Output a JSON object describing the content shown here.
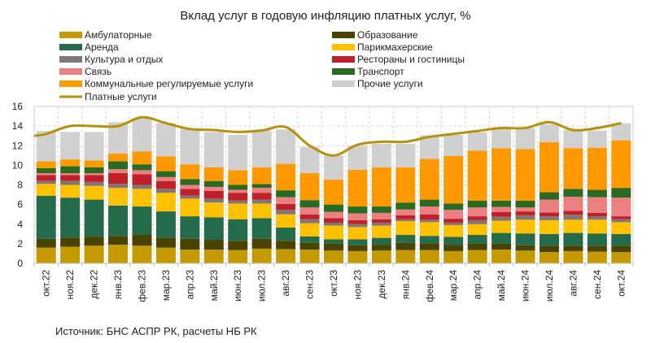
{
  "chart_data": {
    "type": "bar",
    "stacked": true,
    "title": "Вклад услуг в годовую инфляцию платных услуг, %",
    "xlabel": "",
    "ylabel": "",
    "ylim": [
      0,
      16
    ],
    "yticks": [
      0,
      2,
      4,
      6,
      8,
      10,
      12,
      14,
      16
    ],
    "grid": true,
    "legend_position": "top",
    "categories": [
      "окт.22",
      "ноя.22",
      "дек.22",
      "янв.23",
      "фев.23",
      "мар.23",
      "апр.23",
      "май.23",
      "июн.23",
      "июл.23",
      "авг.23",
      "сен.23",
      "окт.23",
      "ноя.23",
      "дек.23",
      "янв.24",
      "фев.24",
      "мар.24",
      "апр.24",
      "май.24",
      "июн.24",
      "июл.24",
      "авг.24",
      "сен.24",
      "окт.24"
    ],
    "series": [
      {
        "name": "Амбулаторные",
        "color": "#c49a00",
        "values": [
          1.6,
          1.7,
          1.8,
          1.9,
          1.8,
          1.6,
          1.4,
          1.4,
          1.35,
          1.5,
          1.45,
          1.4,
          1.3,
          1.25,
          1.3,
          1.35,
          1.35,
          1.25,
          1.35,
          1.4,
          1.3,
          1.15,
          1.25,
          1.2,
          1.15
        ]
      },
      {
        "name": "Образование",
        "color": "#4a4300",
        "values": [
          0.9,
          0.9,
          0.9,
          0.9,
          1.1,
          1.0,
          1.1,
          1.0,
          0.95,
          1.0,
          0.85,
          0.7,
          0.7,
          0.6,
          0.6,
          0.75,
          0.7,
          0.65,
          0.65,
          0.6,
          0.55,
          0.65,
          0.55,
          0.6,
          0.65
        ]
      },
      {
        "name": "Аренда",
        "color": "#236b4a",
        "values": [
          4.4,
          4.1,
          3.8,
          3.1,
          2.9,
          2.7,
          2.3,
          2.3,
          2.2,
          2.1,
          1.35,
          0.65,
          0.45,
          0.6,
          0.7,
          0.8,
          0.75,
          0.8,
          0.9,
          1.1,
          1.2,
          1.2,
          1.3,
          1.25,
          1.2
        ]
      },
      {
        "name": "Парикмахерские",
        "color": "#ffc000",
        "values": [
          1.2,
          1.3,
          1.4,
          1.8,
          1.8,
          1.9,
          1.8,
          1.5,
          1.6,
          1.5,
          1.35,
          1.35,
          1.4,
          1.25,
          1.25,
          1.4,
          1.4,
          1.2,
          1.1,
          1.25,
          1.4,
          1.4,
          1.35,
          1.4,
          1.2
        ]
      },
      {
        "name": "Культура и отдых",
        "color": "#7f7777",
        "values": [
          0.3,
          0.4,
          0.4,
          0.4,
          0.4,
          0.4,
          0.3,
          0.4,
          0.3,
          0.4,
          0.45,
          0.4,
          0.3,
          0.3,
          0.3,
          0.2,
          0.25,
          0.25,
          0.4,
          0.4,
          0.45,
          0.4,
          0.5,
          0.35,
          0.3
        ]
      },
      {
        "name": "Рестораны и гостиницы",
        "color": "#c0202a",
        "values": [
          0.6,
          0.6,
          0.7,
          1.1,
          1.1,
          0.8,
          0.7,
          0.8,
          0.8,
          0.7,
          0.6,
          0.5,
          0.45,
          0.4,
          0.35,
          0.4,
          0.55,
          0.4,
          0.4,
          0.5,
          0.4,
          0.4,
          0.4,
          0.35,
          0.3
        ]
      },
      {
        "name": "Связь",
        "color": "#ec8080",
        "values": [
          0.2,
          0.2,
          0.2,
          0.4,
          0.4,
          0.4,
          0.4,
          0.4,
          0.3,
          0.5,
          0.7,
          0.7,
          0.65,
          0.7,
          0.65,
          0.6,
          0.8,
          0.9,
          0.9,
          0.5,
          0.4,
          1.3,
          1.45,
          1.6,
          1.9
        ]
      },
      {
        "name": "Транспорт",
        "color": "#2a6a22",
        "values": [
          0.5,
          0.7,
          0.6,
          0.8,
          0.6,
          0.6,
          0.6,
          0.6,
          0.5,
          0.4,
          0.7,
          0.75,
          0.75,
          0.7,
          0.65,
          0.7,
          0.7,
          0.65,
          0.7,
          0.65,
          0.7,
          0.75,
          0.8,
          0.75,
          1.0
        ]
      },
      {
        "name": "Коммунальные регулируемые услуги",
        "color": "#ff9900",
        "values": [
          0.7,
          0.7,
          0.7,
          0.8,
          1.3,
          1.5,
          1.5,
          1.4,
          1.5,
          1.7,
          2.7,
          2.75,
          2.55,
          3.75,
          4.0,
          3.6,
          4.15,
          4.85,
          5.1,
          5.35,
          5.25,
          5.1,
          4.15,
          4.3,
          4.85
        ]
      },
      {
        "name": "Прочие услуги",
        "color": "#d0d0d0",
        "values": [
          3.1,
          2.8,
          2.9,
          3.2,
          3.4,
          3.4,
          3.6,
          3.6,
          3.6,
          3.75,
          3.5,
          2.7,
          2.45,
          2.45,
          2.4,
          2.4,
          2.4,
          2.15,
          1.9,
          1.95,
          2.15,
          1.85,
          1.9,
          1.75,
          1.75
        ]
      }
    ],
    "line": {
      "name": "Платные услуги",
      "color": "#b8900a",
      "values": [
        13.2,
        14.0,
        14.0,
        14.0,
        14.9,
        14.3,
        13.7,
        13.6,
        13.4,
        13.55,
        13.9,
        12.0,
        11.0,
        12.1,
        12.4,
        12.4,
        12.9,
        13.2,
        13.5,
        13.8,
        13.8,
        14.4,
        13.6,
        13.8,
        14.3
      ]
    }
  },
  "source": "Источник: БНС АСПР РК, расчеты НБ РК"
}
